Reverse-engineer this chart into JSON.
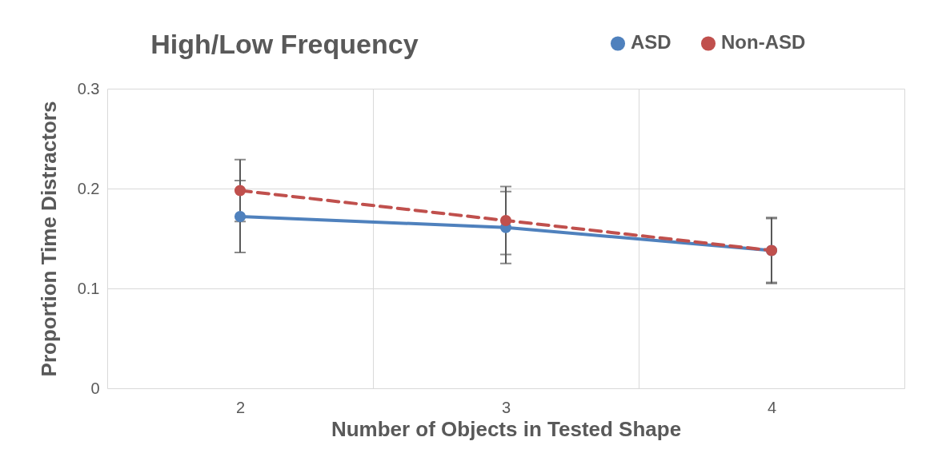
{
  "chart_data": {
    "type": "line",
    "title": "High/Low Frequency",
    "xlabel": "Number of Objects in Tested Shape",
    "ylabel": "Proportion Time Distractors",
    "categories": [
      "2",
      "3",
      "4"
    ],
    "series": [
      {
        "name": "ASD",
        "color": "#4f81bd",
        "values": [
          0.172,
          0.161,
          0.138
        ],
        "errors": [
          0.036,
          0.036,
          0.033
        ],
        "line_style": "solid"
      },
      {
        "name": "Non-ASD",
        "color": "#c0504d",
        "values": [
          0.198,
          0.168,
          0.138
        ],
        "errors": [
          0.031,
          0.034,
          0.032
        ],
        "line_style": "dashed"
      }
    ],
    "ylim": [
      0,
      0.3
    ],
    "yticks": [
      0,
      0.1,
      0.2,
      0.3
    ],
    "grid": true,
    "legend": "top right",
    "marker": "circle"
  }
}
